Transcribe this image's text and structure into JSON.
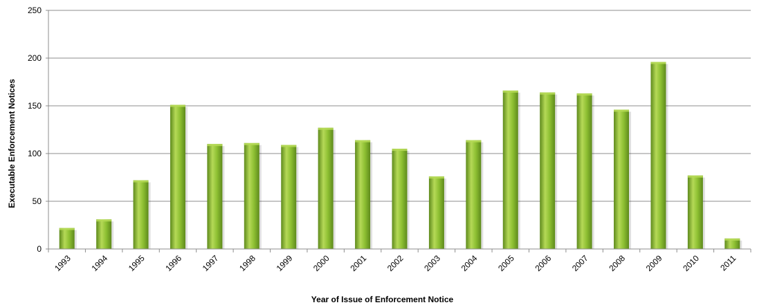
{
  "chart_data": {
    "type": "bar",
    "title": "",
    "xlabel": "Year of Issue of Enforcement Notice",
    "ylabel": "Executable Enforcement Notices",
    "categories": [
      "1993",
      "1994",
      "1995",
      "1996",
      "1997",
      "1998",
      "1999",
      "2000",
      "2001",
      "2002",
      "2003",
      "2004",
      "2005",
      "2006",
      "2007",
      "2008",
      "2009",
      "2010",
      "2011"
    ],
    "values": [
      22,
      31,
      72,
      151,
      110,
      111,
      109,
      127,
      114,
      105,
      76,
      114,
      166,
      164,
      163,
      146,
      196,
      77,
      11
    ],
    "ylim": [
      0,
      250
    ],
    "yticks": [
      "0",
      "50",
      "100",
      "150",
      "200",
      "250"
    ],
    "ytick_values": [
      0,
      50,
      100,
      150,
      200,
      250
    ],
    "grid": true,
    "legend": "none",
    "colors": {
      "bar_light": "#b5d957",
      "bar_mid": "#8dbf32",
      "bar_dark": "#5e8a1c",
      "grid": "#8c8c8c",
      "axis": "#8c8c8c"
    }
  }
}
